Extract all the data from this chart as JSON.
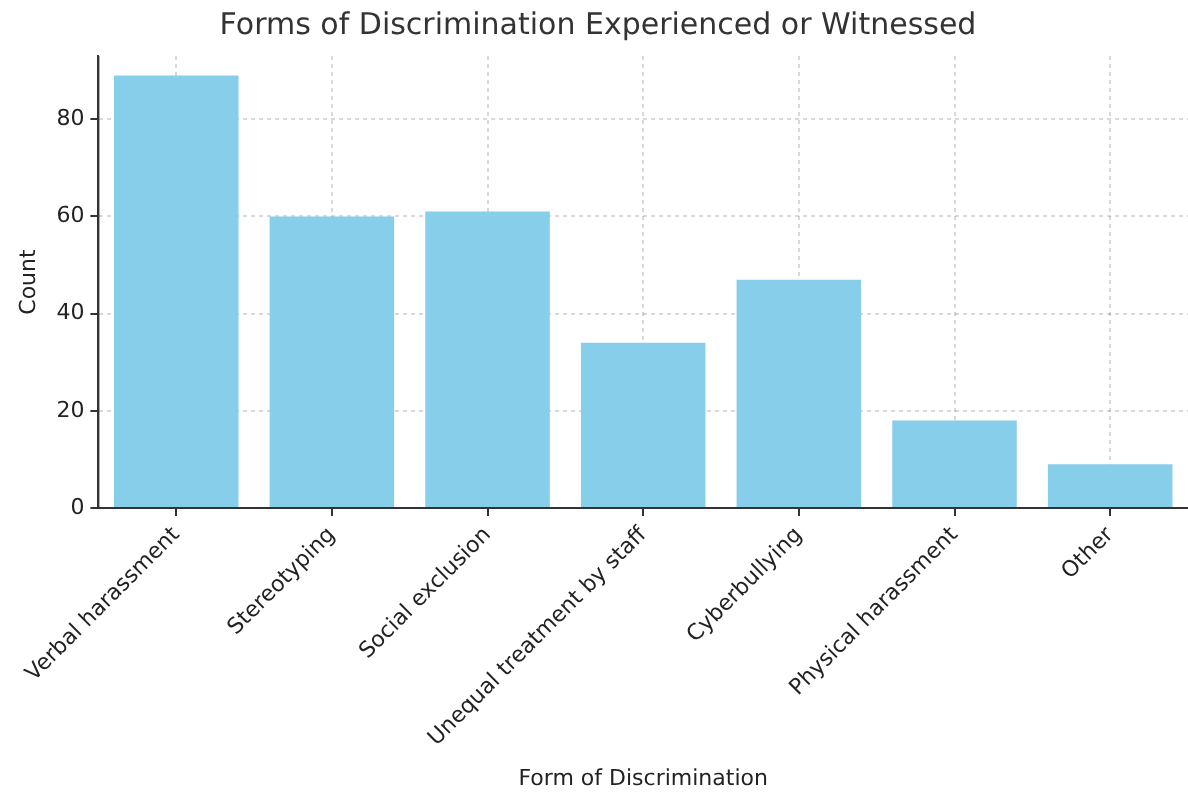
{
  "chart_data": {
    "type": "bar",
    "title": "Forms of Discrimination Experienced or Witnessed",
    "xlabel": "Form of Discrimination",
    "ylabel": "Count",
    "categories": [
      "Verbal harassment",
      "Stereotyping",
      "Social exclusion",
      "Unequal treatment by staff",
      "Cyberbullying",
      "Physical harassment",
      "Other"
    ],
    "values": [
      89,
      60,
      61,
      34,
      47,
      18,
      9
    ],
    "color": "#87ceeb",
    "ylim": [
      0,
      93
    ],
    "yticks": [
      0,
      20,
      40,
      60,
      80
    ],
    "grid": true
  }
}
